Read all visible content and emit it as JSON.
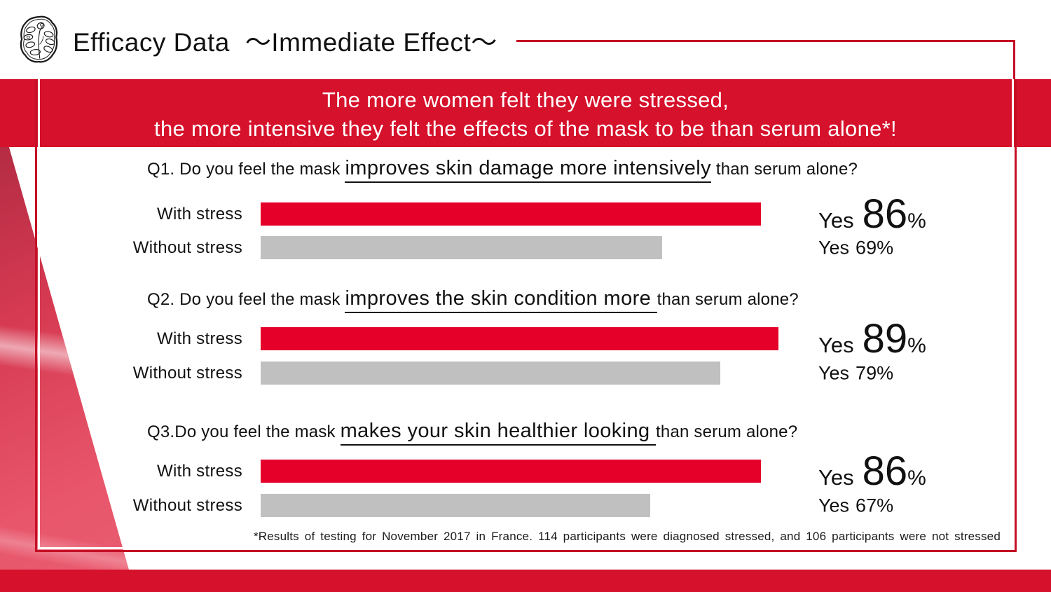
{
  "header": {
    "logo": "flower-emblem-icon",
    "title_main": "Efficacy Data",
    "title_sub": "～Immediate Effect～"
  },
  "banner": {
    "line1": "The more women felt they were stressed,",
    "line2": "the more intensive they felt the effects of the mask to be than serum alone*!"
  },
  "questions": [
    {
      "prefix": "Q1. Do you feel the mask ",
      "highlight": "improves skin damage more intensively",
      "suffix": " than serum alone?",
      "rows": [
        {
          "label": "With stress",
          "yes_word": "Yes",
          "value": 86,
          "percent_sign": "%"
        },
        {
          "label": "Without stress",
          "yes_word": "Yes",
          "value": 69,
          "percent_sign": "%"
        }
      ]
    },
    {
      "prefix": "Q2. Do you feel the mask ",
      "highlight": "improves the skin condition more ",
      "suffix": "than serum alone?",
      "rows": [
        {
          "label": "With stress",
          "yes_word": "Yes",
          "value": 89,
          "percent_sign": "%"
        },
        {
          "label": "Without stress",
          "yes_word": "Yes",
          "value": 79,
          "percent_sign": "%"
        }
      ]
    },
    {
      "prefix": "Q3.Do you feel the mask ",
      "highlight": "makes your skin healthier looking ",
      "suffix": "than serum alone?",
      "rows": [
        {
          "label": "With stress",
          "yes_word": "Yes",
          "value": 86,
          "percent_sign": "%"
        },
        {
          "label": "Without stress",
          "yes_word": "Yes",
          "value": 67,
          "percent_sign": "%"
        }
      ]
    }
  ],
  "footnote": "*Results of testing for November 2017 in France. 114 participants were diagnosed stressed, and 106 participants were not stressed",
  "colors": {
    "banner_red": "#d6112b",
    "bar_red": "#e50029",
    "bar_gray": "#c1c0c0",
    "frame_red": "#c50f26",
    "band_red": "#d6112b"
  },
  "chart_data": {
    "type": "bar",
    "title": "Efficacy Data ～Immediate Effect～",
    "subtitle": "The more women felt they were stressed, the more intensive they felt the effects of the mask to be than serum alone*!",
    "orientation": "horizontal",
    "unit": "% answering Yes",
    "xlim": [
      0,
      100
    ],
    "categories": [
      "With stress",
      "Without stress"
    ],
    "groups": [
      {
        "question": "Q1. Do you feel the mask improves skin damage more intensively than serum alone?",
        "series": [
          {
            "name": "With stress",
            "value": 86,
            "label": "Yes 86%"
          },
          {
            "name": "Without stress",
            "value": 69,
            "label": "Yes 69%"
          }
        ]
      },
      {
        "question": "Q2. Do you feel the mask improves the skin condition more than serum alone?",
        "series": [
          {
            "name": "With stress",
            "value": 89,
            "label": "Yes 89%"
          },
          {
            "name": "Without stress",
            "value": 79,
            "label": "Yes 79%"
          }
        ]
      },
      {
        "question": "Q3.Do you feel the mask makes your skin healthier looking than serum alone?",
        "series": [
          {
            "name": "With stress",
            "value": 86,
            "label": "Yes 86%"
          },
          {
            "name": "Without stress",
            "value": 67,
            "label": "Yes 67%"
          }
        ]
      }
    ],
    "bar_colors": {
      "With stress": "#e50029",
      "Without stress": "#c1c0c0"
    },
    "grid": false,
    "legend_position": "none",
    "note": "*Results of testing for November 2017 in France. 114 participants were diagnosed stressed, and 106 participants were not stressed"
  }
}
